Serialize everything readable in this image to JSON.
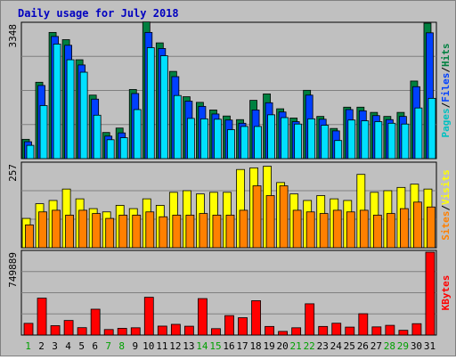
{
  "chart_data": {
    "type": "bar",
    "title": "Daily usage for July 2018",
    "categories": [
      "1",
      "2",
      "3",
      "4",
      "5",
      "6",
      "7",
      "8",
      "9",
      "10",
      "11",
      "12",
      "13",
      "14",
      "15",
      "16",
      "17",
      "18",
      "19",
      "20",
      "21",
      "22",
      "23",
      "24",
      "25",
      "26",
      "27",
      "28",
      "29",
      "30",
      "31"
    ],
    "weekend_days": [
      "1",
      "7",
      "8",
      "14",
      "15",
      "21",
      "22",
      "28",
      "29"
    ],
    "panels": [
      {
        "id": "hits-files-pages",
        "max_label": "3348",
        "ymax": 3348,
        "legend": [
          "Pages",
          "/",
          "Files",
          "/",
          "Hits"
        ],
        "series": [
          {
            "name": "Hits",
            "color": "#008040",
            "values": [
              480,
              1900,
              3140,
              2960,
              2460,
              1580,
              650,
              760,
              1720,
              3400,
              2880,
              2170,
              1540,
              1400,
              1210,
              1060,
              970,
              1450,
              1610,
              1240,
              1010,
              1700,
              1050,
              750,
              1280,
              1280,
              1150,
              1050,
              1150,
              1930,
              3370
            ]
          },
          {
            "name": "Files",
            "color": "#0040ff",
            "values": [
              420,
              1820,
              3040,
              2820,
              2330,
              1480,
              560,
              640,
              1620,
              3140,
              2740,
              2040,
              1430,
              1300,
              1110,
              960,
              880,
              1210,
              1390,
              1160,
              920,
              1580,
              980,
              690,
              1220,
              1190,
              1070,
              970,
              1050,
              1790,
              3130
            ]
          },
          {
            "name": "Pages",
            "color": "#00e0ff",
            "values": [
              330,
              1320,
              2850,
              2460,
              2150,
              1080,
              470,
              520,
              1220,
              2760,
              2560,
              1570,
              1000,
              990,
              980,
              720,
              800,
              800,
              1090,
              1020,
              860,
              990,
              830,
              450,
              960,
              940,
              920,
              880,
              860,
              1260,
              1500
            ]
          }
        ]
      },
      {
        "id": "visits-sites",
        "max_label": "257",
        "ymax": 257,
        "legend": [
          "Sites",
          "/",
          "Visits"
        ],
        "series": [
          {
            "name": "Visits",
            "color": "#ffff00",
            "values": [
              90,
              135,
              145,
              180,
              150,
              120,
              110,
              130,
              120,
              150,
              130,
              170,
              175,
              165,
              170,
              170,
              240,
              245,
              250,
              200,
              165,
              145,
              160,
              150,
              145,
              225,
              170,
              175,
              185,
              195,
              180
            ]
          },
          {
            "name": "Sites",
            "color": "#ff8000",
            "values": [
              70,
              110,
              115,
              100,
              115,
              105,
              90,
              100,
              100,
              110,
              95,
              100,
              100,
              105,
              100,
              100,
              115,
              190,
              160,
              190,
              115,
              110,
              105,
              115,
              110,
              115,
              100,
              105,
              120,
              140,
              125
            ]
          }
        ]
      },
      {
        "id": "kbytes",
        "max_label": "749889",
        "ymax": 749889,
        "legend": [
          "KBytes"
        ],
        "series": [
          {
            "name": "KBytes",
            "color": "#ff0000",
            "values": [
              106000,
              334000,
              85000,
              132000,
              67000,
              234000,
              50000,
              61000,
              66000,
              342000,
              81000,
              97000,
              80000,
              330000,
              58000,
              176000,
              157000,
              311000,
              78000,
              33000,
              66000,
              283000,
              78000,
              107000,
              72000,
              193000,
              74000,
              88000,
              43000,
              103000,
              749889
            ]
          }
        ]
      }
    ]
  }
}
